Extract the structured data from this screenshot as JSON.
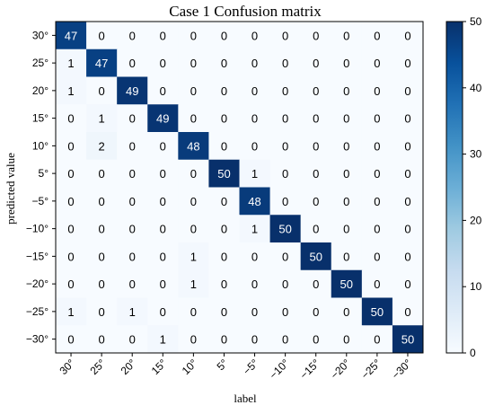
{
  "chart_data": {
    "type": "heatmap",
    "title": "Case 1 Confusion matrix",
    "xlabel": "label",
    "ylabel": "predicted value",
    "x_tick_labels": [
      "30°",
      "25°",
      "20°",
      "15°",
      "10°",
      "5°",
      "−5°",
      "−10°",
      "−15°",
      "−20°",
      "−25°",
      "−30°"
    ],
    "y_tick_labels": [
      "30°",
      "25°",
      "20°",
      "15°",
      "10°",
      "5°",
      "−5°",
      "−10°",
      "−15°",
      "−20°",
      "−25°",
      "−30°"
    ],
    "values": [
      [
        47,
        0,
        0,
        0,
        0,
        0,
        0,
        0,
        0,
        0,
        0,
        0
      ],
      [
        1,
        47,
        0,
        0,
        0,
        0,
        0,
        0,
        0,
        0,
        0,
        0
      ],
      [
        1,
        0,
        49,
        0,
        0,
        0,
        0,
        0,
        0,
        0,
        0,
        0
      ],
      [
        0,
        1,
        0,
        49,
        0,
        0,
        0,
        0,
        0,
        0,
        0,
        0
      ],
      [
        0,
        2,
        0,
        0,
        48,
        0,
        0,
        0,
        0,
        0,
        0,
        0
      ],
      [
        0,
        0,
        0,
        0,
        0,
        50,
        1,
        0,
        0,
        0,
        0,
        0
      ],
      [
        0,
        0,
        0,
        0,
        0,
        0,
        48,
        0,
        0,
        0,
        0,
        0
      ],
      [
        0,
        0,
        0,
        0,
        0,
        0,
        1,
        50,
        0,
        0,
        0,
        0
      ],
      [
        0,
        0,
        0,
        0,
        1,
        0,
        0,
        0,
        50,
        0,
        0,
        0
      ],
      [
        0,
        0,
        0,
        0,
        1,
        0,
        0,
        0,
        0,
        50,
        0,
        0
      ],
      [
        1,
        0,
        1,
        0,
        0,
        0,
        0,
        0,
        0,
        0,
        50,
        0
      ],
      [
        0,
        0,
        0,
        1,
        0,
        0,
        0,
        0,
        0,
        0,
        0,
        50
      ]
    ],
    "colorbar": {
      "vmin": 0,
      "vmax": 50,
      "ticks": [
        "0",
        "10",
        "20",
        "30",
        "40",
        "50"
      ],
      "colormap": "Blues",
      "color_low": "#f7fbff",
      "color_high": "#08306b"
    },
    "grid": false
  }
}
